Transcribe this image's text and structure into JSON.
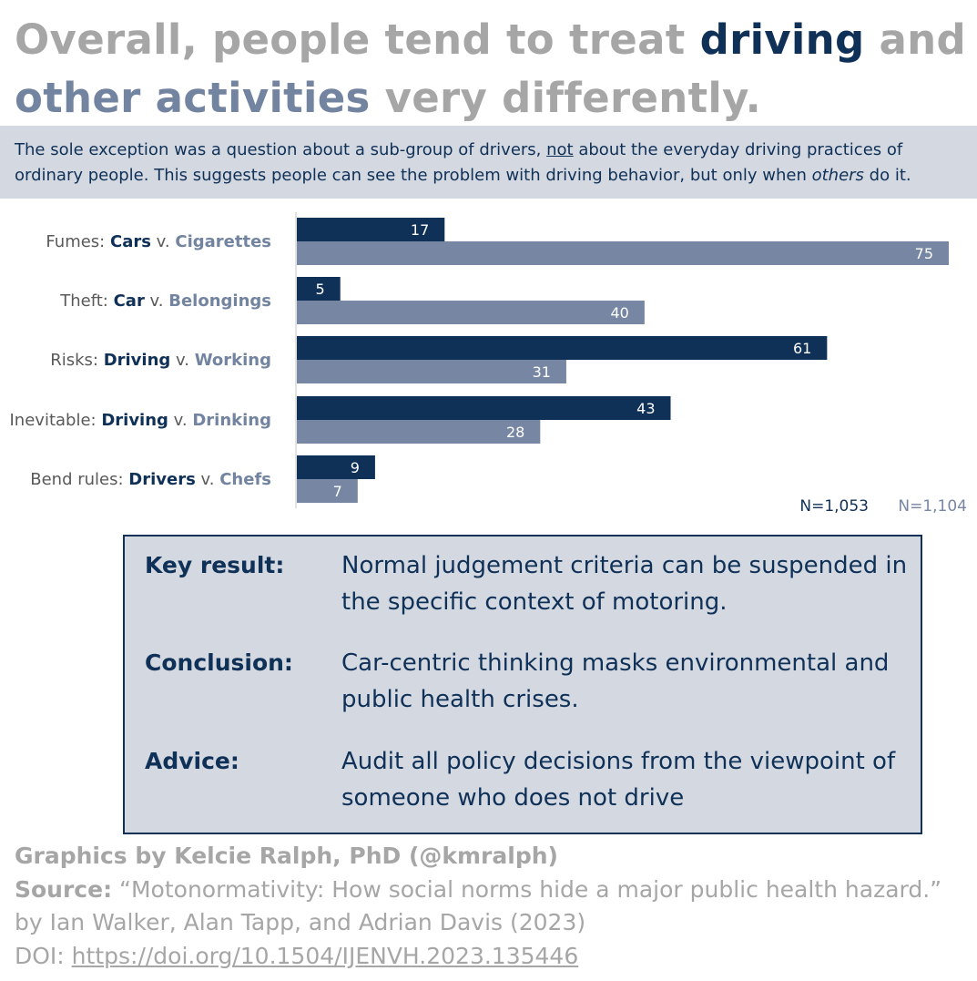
{
  "title": {
    "prefix": "Overall, people tend to treat ",
    "driving": "driving",
    "and": " and ",
    "other": "other activities",
    "suffix": " very differently."
  },
  "subtitle": {
    "part1": "The sole exception was a question about a sub-group of drivers, ",
    "not": "not",
    "part2": " about the everyday driving practices of ordinary people. This suggests people can see the problem with driving behavior, but only when ",
    "others": "others",
    "part3": " do it."
  },
  "chart_data": {
    "type": "bar",
    "orientation": "horizontal",
    "categories": [
      {
        "prefix": "Fumes: ",
        "a": "Cars",
        "sep": " v. ",
        "b": "Cigarettes"
      },
      {
        "prefix": "Theft: ",
        "a": "Car",
        "sep": " v. ",
        "b": "Belongings"
      },
      {
        "prefix": "Risks: ",
        "a": "Driving",
        "sep": " v. ",
        "b": "Working"
      },
      {
        "prefix": "Inevitable: ",
        "a": "Driving",
        "sep": " v. ",
        "b": "Drinking"
      },
      {
        "prefix": "Bend rules: ",
        "a": "Drivers",
        "sep": " v. ",
        "b": "Chefs"
      }
    ],
    "series": [
      {
        "name": "N=1,053",
        "color": "#0f3057",
        "values": [
          17,
          5,
          61,
          43,
          9
        ]
      },
      {
        "name": "N=1,104",
        "color": "#7787a3",
        "values": [
          75,
          40,
          31,
          28,
          7
        ]
      }
    ],
    "xlim": [
      0,
      75
    ],
    "legend_position": "bottom-right"
  },
  "keybox": {
    "rows": [
      {
        "label": "Key result:",
        "text": "Normal judgement criteria can be suspended in the specific context of motoring."
      },
      {
        "label": "Conclusion:",
        "text": "Car-centric thinking masks environmental and public health crises."
      },
      {
        "label": "Advice:",
        "text": "Audit all policy decisions from the viewpoint of someone who does not drive"
      }
    ]
  },
  "credits": {
    "graphics": "Graphics by Kelcie Ralph, PhD (@kmralph)",
    "source_label": "Source:",
    "source_title": " “Motonormativity: How social norms hide a major public health hazard.”",
    "authors": "by Ian Walker, Alan Tapp, and Adrian Davis (2023)",
    "doi_label": "DOI: ",
    "doi_link": "https://doi.org/10.1504/IJENVH.2023.135446"
  }
}
